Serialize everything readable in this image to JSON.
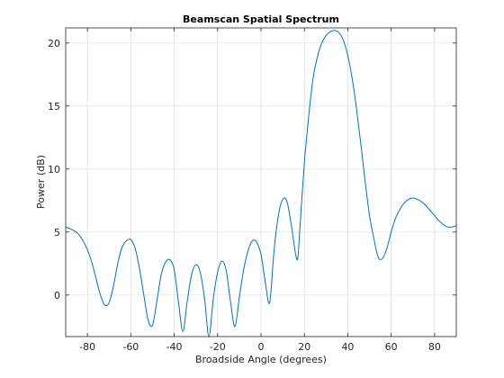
{
  "chart_data": {
    "type": "line",
    "title": "Beamscan Spatial Spectrum",
    "xlabel": "Broadside Angle (degrees)",
    "ylabel": "Power (dB)",
    "xlim": [
      -90,
      90
    ],
    "ylim": [
      -3.3,
      21.2
    ],
    "xticks": [
      -80,
      -60,
      -40,
      -20,
      0,
      20,
      40,
      60,
      80
    ],
    "yticks": [
      0,
      5,
      10,
      15,
      20
    ],
    "grid": true,
    "legend": "none",
    "colors": {
      "line": "#0072bd",
      "grid": "#dcdcdc",
      "axes": "#262626"
    },
    "series": [
      {
        "x": [
          -90,
          -86,
          -84,
          -82,
          -80,
          -78,
          -76,
          -74,
          -72,
          -70,
          -68,
          -66,
          -64,
          -62,
          -60,
          -58,
          -56,
          -54,
          -52,
          -50,
          -48,
          -46,
          -44,
          -42,
          -40,
          -38,
          -36,
          -34,
          -32,
          -30,
          -28,
          -26,
          -24,
          -22,
          -20,
          -18,
          -16,
          -14,
          -12,
          -10,
          -8,
          -6,
          -4,
          -2,
          0,
          2,
          4,
          6,
          8,
          10,
          12,
          14,
          16,
          17,
          18,
          20,
          22,
          24,
          26,
          28,
          30,
          32,
          34,
          36,
          38,
          40,
          42,
          44,
          46,
          48,
          50,
          52,
          54,
          56,
          58,
          60,
          62,
          64,
          66,
          68,
          70,
          72,
          74,
          76,
          78,
          80,
          82,
          84,
          86,
          88,
          90
        ],
        "y": [
          5.4,
          5.1,
          4.8,
          4.3,
          3.6,
          2.6,
          1.3,
          0,
          -0.8,
          -0.6,
          0.7,
          2.5,
          3.8,
          4.3,
          4.4,
          3.7,
          2.1,
          0,
          -2.0,
          -2.4,
          -0.5,
          1.6,
          2.6,
          2.8,
          2.0,
          -0.6,
          -2.9,
          -0.5,
          1.6,
          2.4,
          1.8,
          -0.3,
          -3.3,
          -0.3,
          1.8,
          2.7,
          1.9,
          -0.6,
          -2.5,
          -0.2,
          2.0,
          3.5,
          4.3,
          4.2,
          3.2,
          1.0,
          -0.6,
          3.5,
          6.3,
          7.6,
          7.4,
          5.5,
          3.2,
          3.0,
          5.5,
          10.5,
          14.2,
          17.2,
          18.9,
          20.0,
          20.6,
          20.9,
          21.0,
          20.8,
          20.2,
          19.0,
          17.2,
          14.8,
          12.0,
          9.0,
          6.3,
          4.5,
          3.0,
          2.9,
          3.7,
          5.0,
          6.1,
          6.8,
          7.3,
          7.6,
          7.7,
          7.6,
          7.4,
          7.1,
          6.7,
          6.3,
          5.9,
          5.6,
          5.4,
          5.4,
          5.5
        ]
      }
    ]
  }
}
